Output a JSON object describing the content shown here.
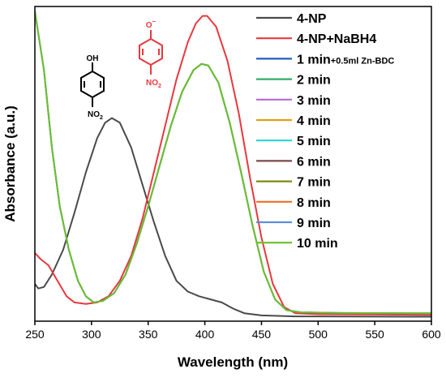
{
  "chart_data": {
    "type": "line",
    "xlabel": "Wavelength (nm)",
    "ylabel": "Absorbance (a.u.)",
    "xlim": [
      250,
      600
    ],
    "x_ticks": [
      250,
      300,
      350,
      400,
      450,
      500,
      550,
      600
    ],
    "ylim": [
      0,
      1.0
    ],
    "grid": false,
    "legend_position": "top-right",
    "series": [
      {
        "name": "4-NP",
        "color": "#4a4a4a",
        "points": [
          [
            250,
            0.11
          ],
          [
            253,
            0.095
          ],
          [
            258,
            0.1
          ],
          [
            265,
            0.14
          ],
          [
            275,
            0.22
          ],
          [
            285,
            0.34
          ],
          [
            295,
            0.47
          ],
          [
            305,
            0.58
          ],
          [
            312,
            0.63
          ],
          [
            318,
            0.645
          ],
          [
            325,
            0.63
          ],
          [
            335,
            0.55
          ],
          [
            345,
            0.43
          ],
          [
            355,
            0.31
          ],
          [
            365,
            0.2
          ],
          [
            375,
            0.12
          ],
          [
            385,
            0.085
          ],
          [
            395,
            0.07
          ],
          [
            405,
            0.06
          ],
          [
            415,
            0.05
          ],
          [
            425,
            0.03
          ],
          [
            435,
            0.015
          ],
          [
            450,
            0.008
          ],
          [
            480,
            0.005
          ],
          [
            600,
            0.004
          ]
        ]
      },
      {
        "name": "4-NP+NaBH4",
        "color": "#e8383d",
        "points": [
          [
            250,
            0.21
          ],
          [
            255,
            0.19
          ],
          [
            262,
            0.17
          ],
          [
            270,
            0.12
          ],
          [
            278,
            0.07
          ],
          [
            285,
            0.05
          ],
          [
            295,
            0.045
          ],
          [
            305,
            0.05
          ],
          [
            315,
            0.07
          ],
          [
            325,
            0.12
          ],
          [
            335,
            0.2
          ],
          [
            345,
            0.32
          ],
          [
            355,
            0.47
          ],
          [
            365,
            0.62
          ],
          [
            375,
            0.77
          ],
          [
            385,
            0.89
          ],
          [
            392,
            0.95
          ],
          [
            398,
            0.975
          ],
          [
            402,
            0.975
          ],
          [
            410,
            0.94
          ],
          [
            420,
            0.83
          ],
          [
            430,
            0.66
          ],
          [
            440,
            0.45
          ],
          [
            450,
            0.26
          ],
          [
            460,
            0.11
          ],
          [
            470,
            0.035
          ],
          [
            480,
            0.015
          ],
          [
            500,
            0.012
          ],
          [
            550,
            0.011
          ],
          [
            600,
            0.01
          ]
        ]
      },
      {
        "name": "1 min",
        "name_suffix": "+0.5ml Zn-BDC",
        "color": "#1f5fbf",
        "points": [
          [
            250,
            0.99
          ],
          [
            258,
            0.8
          ],
          [
            265,
            0.55
          ],
          [
            272,
            0.36
          ],
          [
            280,
            0.22
          ],
          [
            288,
            0.12
          ],
          [
            295,
            0.07
          ],
          [
            302,
            0.05
          ],
          [
            310,
            0.055
          ],
          [
            320,
            0.08
          ],
          [
            330,
            0.14
          ],
          [
            340,
            0.24
          ],
          [
            350,
            0.36
          ],
          [
            360,
            0.49
          ],
          [
            370,
            0.62
          ],
          [
            380,
            0.73
          ],
          [
            390,
            0.8
          ],
          [
            397,
            0.82
          ],
          [
            403,
            0.815
          ],
          [
            412,
            0.76
          ],
          [
            422,
            0.63
          ],
          [
            432,
            0.47
          ],
          [
            442,
            0.3
          ],
          [
            452,
            0.15
          ],
          [
            462,
            0.06
          ],
          [
            472,
            0.025
          ],
          [
            485,
            0.018
          ],
          [
            520,
            0.016
          ],
          [
            600,
            0.015
          ]
        ]
      },
      {
        "name": "2 min",
        "color": "#2fae6a",
        "points": []
      },
      {
        "name": "3 min",
        "color": "#b566d9",
        "points": []
      },
      {
        "name": "4 min",
        "color": "#e0a010",
        "points": []
      },
      {
        "name": "5 min",
        "color": "#2ad2d2",
        "points": []
      },
      {
        "name": "6 min",
        "color": "#7a4a4a",
        "points": []
      },
      {
        "name": "7 min",
        "color": "#7c8a10",
        "points": []
      },
      {
        "name": "8 min",
        "color": "#f07020",
        "points": []
      },
      {
        "name": "9 min",
        "color": "#5b8fd9",
        "points": []
      },
      {
        "name": "10 min",
        "color": "#6cbf2a",
        "points": [
          [
            250,
            0.99
          ],
          [
            258,
            0.8
          ],
          [
            265,
            0.55
          ],
          [
            272,
            0.36
          ],
          [
            280,
            0.22
          ],
          [
            288,
            0.12
          ],
          [
            295,
            0.07
          ],
          [
            302,
            0.05
          ],
          [
            310,
            0.055
          ],
          [
            320,
            0.08
          ],
          [
            330,
            0.14
          ],
          [
            340,
            0.24
          ],
          [
            350,
            0.36
          ],
          [
            360,
            0.49
          ],
          [
            370,
            0.62
          ],
          [
            380,
            0.73
          ],
          [
            390,
            0.8
          ],
          [
            397,
            0.82
          ],
          [
            403,
            0.815
          ],
          [
            412,
            0.76
          ],
          [
            422,
            0.63
          ],
          [
            432,
            0.47
          ],
          [
            442,
            0.3
          ],
          [
            452,
            0.15
          ],
          [
            462,
            0.06
          ],
          [
            472,
            0.025
          ],
          [
            485,
            0.018
          ],
          [
            520,
            0.016
          ],
          [
            600,
            0.015
          ]
        ]
      }
    ]
  },
  "molecules": {
    "left": {
      "top_label": "OH",
      "bottom_label": "NO",
      "bottom_sub": "2"
    },
    "right": {
      "top_label": "O",
      "top_charge": "−",
      "bottom_label": "NO",
      "bottom_sub": "2"
    }
  }
}
